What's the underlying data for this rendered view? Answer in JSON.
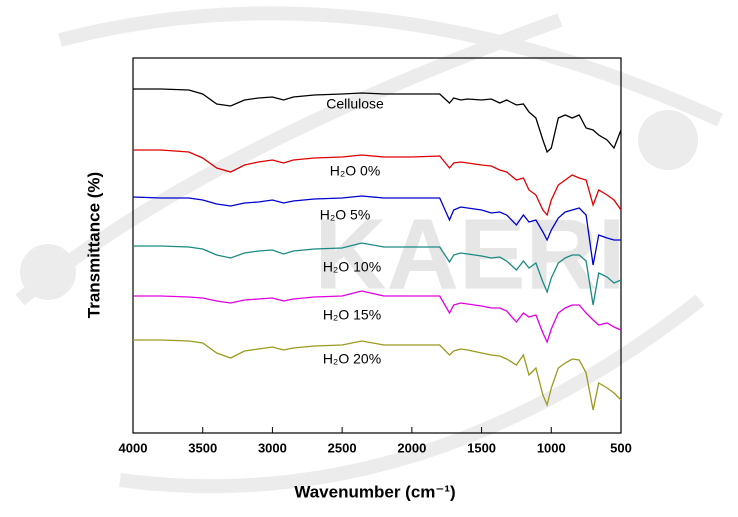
{
  "watermark": "KAERI",
  "chart_data": {
    "type": "line",
    "x_label": "Wavenumber (cm⁻¹)",
    "y_label": "Transmittance (%)",
    "xlim": [
      4000,
      500
    ],
    "xticks": [
      4000,
      3500,
      3000,
      2500,
      2000,
      1500,
      1000,
      500
    ],
    "ylim": [
      0,
      375
    ],
    "x": [
      4000,
      3800,
      3600,
      3500,
      3400,
      3300,
      3200,
      3100,
      3000,
      2920,
      2850,
      2700,
      2500,
      2360,
      2200,
      2000,
      1800,
      1730,
      1700,
      1650,
      1600,
      1500,
      1430,
      1370,
      1320,
      1250,
      1200,
      1160,
      1110,
      1060,
      1030,
      1000,
      950,
      900,
      850,
      800,
      750,
      700,
      660,
      600,
      550,
      500
    ],
    "series": [
      {
        "name": "Cellulose",
        "color": "#000000",
        "values": [
          344,
          344,
          343,
          339,
          329,
          327,
          333,
          335,
          336,
          333,
          336,
          338,
          339,
          340,
          339,
          339,
          339,
          330,
          335,
          333,
          334,
          333,
          334,
          330,
          333,
          328,
          329,
          321,
          315,
          293,
          281,
          285,
          315,
          318,
          315,
          318,
          305,
          303,
          298,
          293,
          285,
          303
        ]
      },
      {
        "name": "H₂O 0%",
        "color": "#e00000",
        "values": [
          283,
          283,
          281,
          275,
          265,
          261,
          268,
          271,
          273,
          270,
          273,
          275,
          276,
          278,
          276,
          276,
          277,
          265,
          270,
          271,
          270,
          268,
          267,
          263,
          261,
          253,
          255,
          243,
          238,
          223,
          218,
          233,
          248,
          253,
          258,
          255,
          253,
          228,
          243,
          238,
          233,
          223
        ]
      },
      {
        "name": "H₂O 5%",
        "color": "#0000d0",
        "values": [
          236,
          235,
          235,
          233,
          229,
          227,
          230,
          231,
          233,
          230,
          232,
          234,
          235,
          237,
          235,
          235,
          235,
          213,
          223,
          226,
          225,
          223,
          220,
          221,
          218,
          208,
          218,
          211,
          213,
          201,
          193,
          203,
          215,
          221,
          223,
          225,
          218,
          168,
          198,
          195,
          193,
          193
        ]
      },
      {
        "name": "H₂O 10%",
        "color": "#1a8a82",
        "values": [
          187,
          187,
          186,
          184,
          178,
          175,
          180,
          182,
          183,
          179,
          182,
          184,
          185,
          190,
          186,
          186,
          186,
          171,
          178,
          180,
          179,
          177,
          175,
          176,
          172,
          163,
          172,
          165,
          170,
          151,
          141,
          155,
          170,
          175,
          178,
          178,
          172,
          128,
          160,
          156,
          150,
          153
        ]
      },
      {
        "name": "H₂O 15%",
        "color": "#e000e0",
        "values": [
          137,
          137,
          136,
          135,
          132,
          130,
          133,
          134,
          135,
          132,
          134,
          136,
          137,
          142,
          137,
          137,
          137,
          120,
          128,
          130,
          129,
          127,
          125,
          125,
          122,
          111,
          120,
          116,
          118,
          100,
          91,
          104,
          120,
          125,
          128,
          128,
          120,
          113,
          108,
          110,
          106,
          103
        ]
      },
      {
        "name": "H₂O 20%",
        "color": "#9a9a20",
        "values": [
          93,
          93,
          92,
          90,
          80,
          75,
          82,
          84,
          86,
          83,
          85,
          87,
          88,
          92,
          88,
          88,
          88,
          78,
          82,
          84,
          83,
          80,
          78,
          77,
          74,
          68,
          78,
          58,
          65,
          38,
          28,
          45,
          65,
          70,
          74,
          73,
          60,
          23,
          50,
          45,
          40,
          33
        ]
      }
    ]
  }
}
